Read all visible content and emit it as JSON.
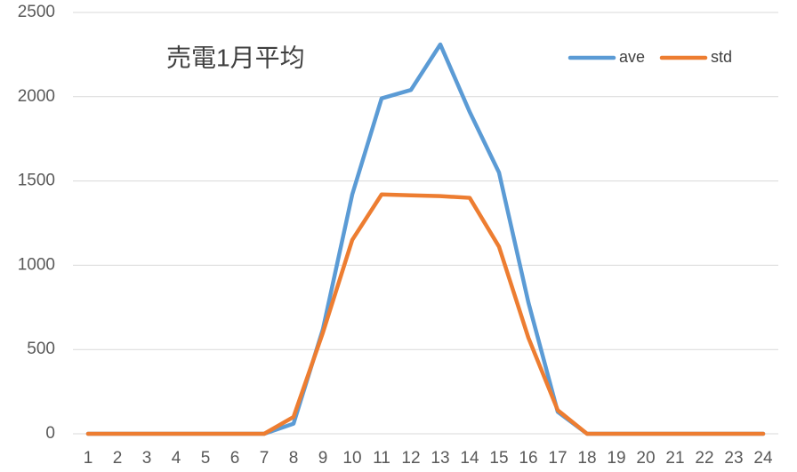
{
  "chart_data": {
    "type": "line",
    "title": "売電1月平均",
    "categories": [
      "1",
      "2",
      "3",
      "4",
      "5",
      "6",
      "7",
      "8",
      "9",
      "10",
      "11",
      "12",
      "13",
      "14",
      "15",
      "16",
      "17",
      "18",
      "19",
      "20",
      "21",
      "22",
      "23",
      "24"
    ],
    "series": [
      {
        "name": "ave",
        "color": "#5b9bd5",
        "values": [
          0,
          0,
          0,
          0,
          0,
          0,
          0,
          60,
          620,
          1420,
          1990,
          2040,
          2310,
          1910,
          1550,
          780,
          130,
          0,
          0,
          0,
          0,
          0,
          0,
          0
        ]
      },
      {
        "name": "std",
        "color": "#ed7d31",
        "values": [
          0,
          0,
          0,
          0,
          0,
          0,
          0,
          100,
          600,
          1150,
          1420,
          1415,
          1410,
          1400,
          1110,
          570,
          140,
          0,
          0,
          0,
          0,
          0,
          0,
          0
        ]
      }
    ],
    "ylim": [
      0,
      2500
    ],
    "yticks": [
      0,
      500,
      1000,
      1500,
      2000,
      2500
    ],
    "grid": true,
    "legend": "top-right"
  }
}
